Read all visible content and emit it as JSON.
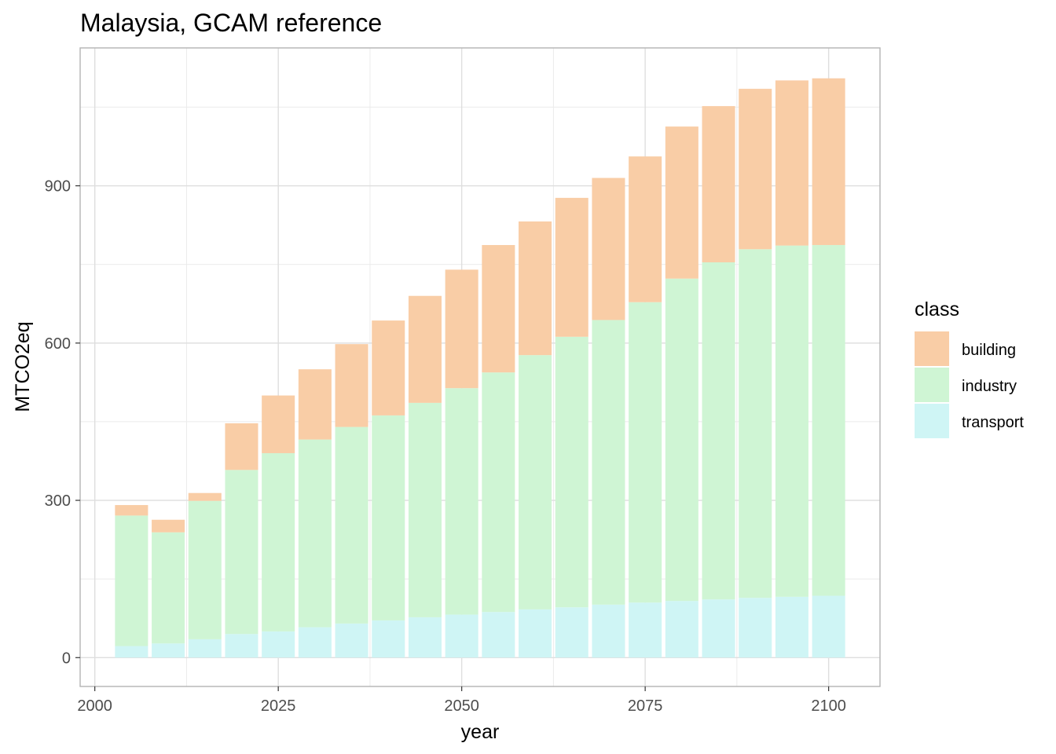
{
  "chart_data": {
    "type": "bar",
    "stacked": true,
    "title": "Malaysia, GCAM reference",
    "xlabel": "year",
    "ylabel": "MTCO2eq",
    "x": [
      2005,
      2010,
      2015,
      2020,
      2025,
      2030,
      2035,
      2040,
      2045,
      2050,
      2055,
      2060,
      2065,
      2070,
      2075,
      2080,
      2085,
      2090,
      2095,
      2100
    ],
    "x_ticks": [
      2000,
      2025,
      2050,
      2075,
      2100
    ],
    "y_ticks": [
      0,
      300,
      600,
      900
    ],
    "xlim": [
      1998,
      2107
    ],
    "ylim": [
      -55,
      1163
    ],
    "grid": true,
    "legend": {
      "title": "class",
      "position": "right"
    },
    "series": [
      {
        "name": "transport",
        "color": "#CFF5F5",
        "values": [
          22,
          27,
          35,
          45,
          50,
          58,
          65,
          71,
          77,
          82,
          87,
          92,
          96,
          101,
          105,
          108,
          111,
          114,
          116,
          118
        ]
      },
      {
        "name": "industry",
        "color": "#CFF5D4",
        "values": [
          249,
          212,
          264,
          313,
          340,
          358,
          375,
          391,
          409,
          432,
          457,
          485,
          516,
          543,
          573,
          615,
          643,
          665,
          670,
          669
        ]
      },
      {
        "name": "building",
        "color": "#F9CDA6",
        "values": [
          20,
          24,
          15,
          89,
          110,
          134,
          158,
          181,
          204,
          226,
          243,
          255,
          265,
          271,
          278,
          290,
          298,
          306,
          315,
          318
        ]
      }
    ]
  }
}
